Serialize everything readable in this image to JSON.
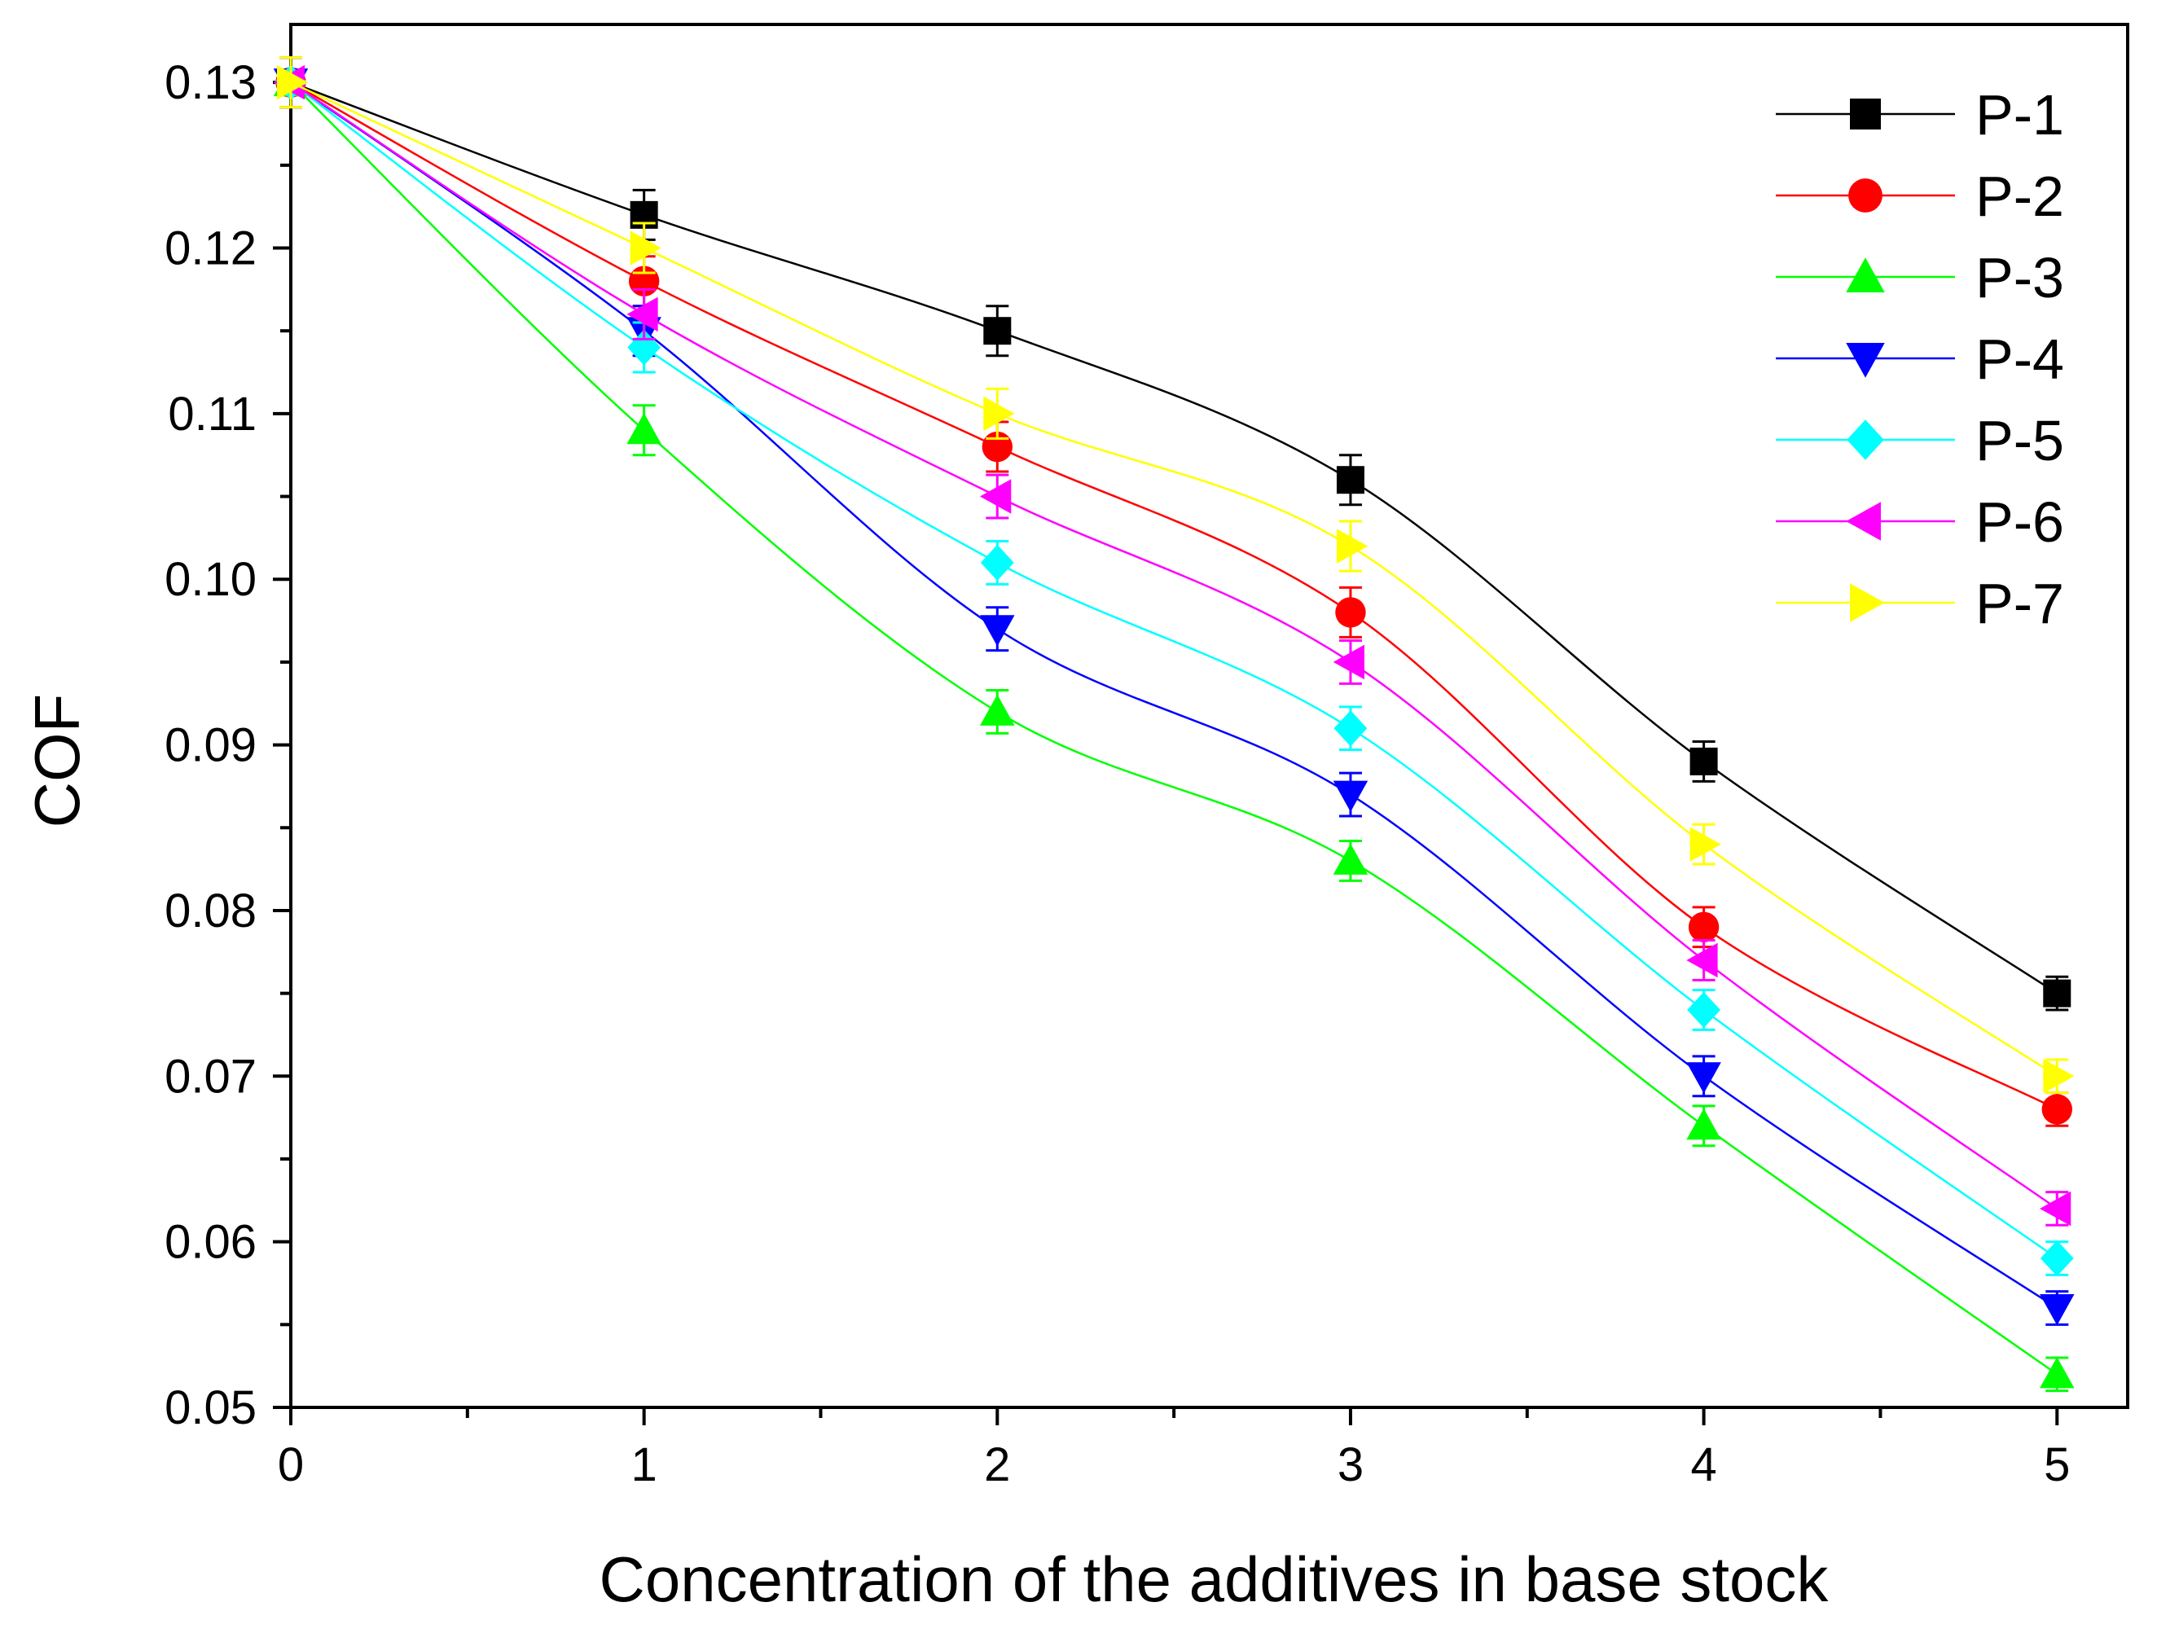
{
  "chart_data": {
    "type": "line",
    "title": "",
    "xlabel": "Concentration of the additives in base stock",
    "ylabel": "COF",
    "xlim": [
      0,
      5.2
    ],
    "ylim": [
      0.05,
      0.1335
    ],
    "x_ticks": [
      "0",
      "1",
      "2",
      "3",
      "4",
      "5"
    ],
    "y_ticks": [
      "0.05",
      "0.06",
      "0.07",
      "0.08",
      "0.09",
      "0.10",
      "0.11",
      "0.12",
      "0.13"
    ],
    "grid": false,
    "legend_position": "top-right",
    "x": [
      0,
      1,
      2,
      3,
      4,
      5
    ],
    "series": [
      {
        "name": "P-1",
        "color": "#000000",
        "marker": "square",
        "values": [
          0.13,
          0.122,
          0.115,
          0.106,
          0.089,
          0.075
        ],
        "errors": [
          0.0015,
          0.0015,
          0.0015,
          0.0015,
          0.0012,
          0.001
        ]
      },
      {
        "name": "P-2",
        "color": "#ff0000",
        "marker": "circle",
        "values": [
          0.13,
          0.118,
          0.108,
          0.098,
          0.079,
          0.068
        ],
        "errors": [
          0.0015,
          0.0015,
          0.0015,
          0.0015,
          0.0012,
          0.001
        ]
      },
      {
        "name": "P-3",
        "color": "#00ff00",
        "marker": "triangle-up",
        "values": [
          0.13,
          0.109,
          0.092,
          0.083,
          0.067,
          0.052
        ],
        "errors": [
          0.0015,
          0.0015,
          0.0013,
          0.0012,
          0.0012,
          0.001
        ]
      },
      {
        "name": "P-4",
        "color": "#0000ff",
        "marker": "triangle-down",
        "values": [
          0.13,
          0.115,
          0.097,
          0.087,
          0.07,
          0.056
        ],
        "errors": [
          0.0015,
          0.0015,
          0.0013,
          0.0013,
          0.0012,
          0.001
        ]
      },
      {
        "name": "P-5",
        "color": "#00ffff",
        "marker": "diamond",
        "values": [
          0.13,
          0.114,
          0.101,
          0.091,
          0.074,
          0.059
        ],
        "errors": [
          0.0015,
          0.0015,
          0.0013,
          0.0013,
          0.0012,
          0.001
        ]
      },
      {
        "name": "P-6",
        "color": "#ff00ff",
        "marker": "triangle-left",
        "values": [
          0.13,
          0.116,
          0.105,
          0.095,
          0.077,
          0.062
        ],
        "errors": [
          0.0015,
          0.0015,
          0.0013,
          0.0013,
          0.0012,
          0.001
        ]
      },
      {
        "name": "P-7",
        "color": "#ffff00",
        "marker": "triangle-right",
        "values": [
          0.13,
          0.12,
          0.11,
          0.102,
          0.084,
          0.07
        ],
        "errors": [
          0.0015,
          0.0015,
          0.0015,
          0.0015,
          0.0012,
          0.001
        ]
      }
    ]
  }
}
